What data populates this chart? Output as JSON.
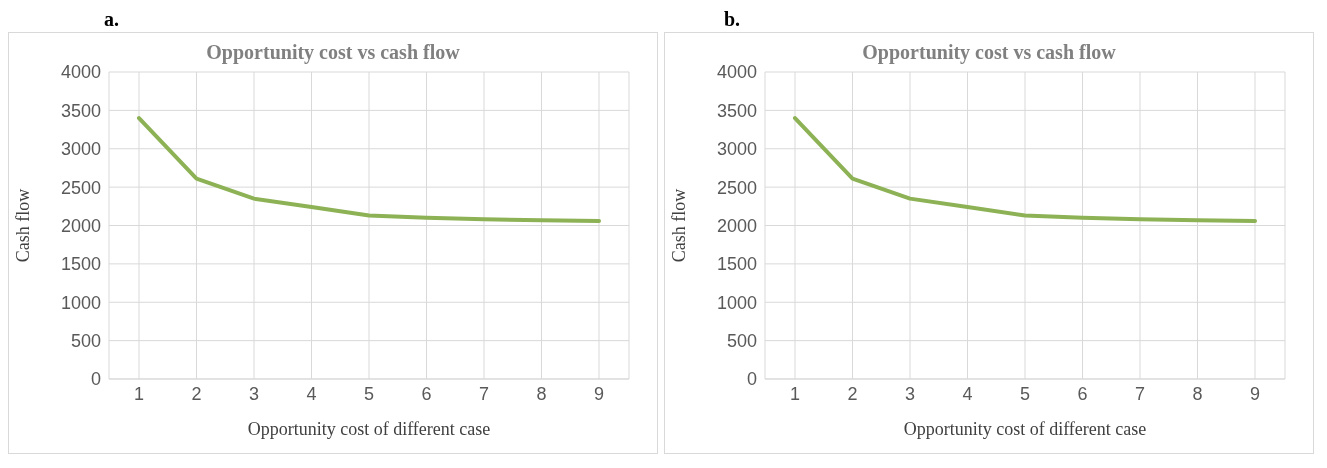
{
  "chart_data": [
    {
      "type": "line",
      "annotations": [
        "a."
      ],
      "title": "Opportunity cost vs cash flow",
      "xlabel": "Opportunity cost of different case",
      "ylabel": "Cash flow",
      "categories": [
        "1",
        "2",
        "3",
        "4",
        "5",
        "6",
        "7",
        "8",
        "9"
      ],
      "series": [
        {
          "color": "#8db255",
          "values": [
            3400,
            2610,
            2350,
            2240,
            2130,
            2100,
            2080,
            2070,
            2060
          ]
        }
      ],
      "ylim": [
        0,
        4000
      ],
      "yticks": [
        0,
        500,
        1000,
        1500,
        2000,
        2500,
        3000,
        3500,
        4000
      ],
      "grid": true,
      "legend": false,
      "marker": "none",
      "line_style": "solid"
    },
    {
      "type": "line",
      "annotations": [
        "b."
      ],
      "title": "Opportunity cost vs cash flow",
      "xlabel": "Opportunity cost of different case",
      "ylabel": "Cash flow",
      "categories": [
        "1",
        "2",
        "3",
        "4",
        "5",
        "6",
        "7",
        "8",
        "9"
      ],
      "series": [
        {
          "color": "#8db255",
          "values": [
            3400,
            2610,
            2350,
            2240,
            2130,
            2100,
            2080,
            2070,
            2060
          ]
        }
      ],
      "ylim": [
        0,
        4000
      ],
      "yticks": [
        0,
        500,
        1000,
        1500,
        2000,
        2500,
        3000,
        3500,
        4000
      ],
      "grid": true,
      "legend": false,
      "marker": "none",
      "line_style": "solid"
    }
  ]
}
